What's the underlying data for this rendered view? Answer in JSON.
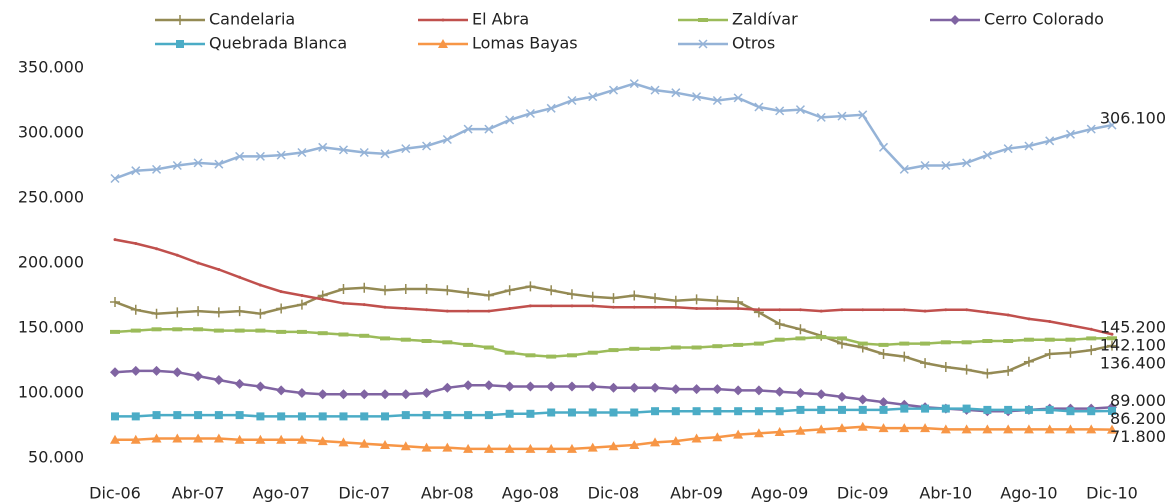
{
  "chart_data": {
    "type": "line",
    "categories": [
      "Dic-06",
      null,
      null,
      null,
      "Abr-07",
      null,
      null,
      null,
      "Ago-07",
      null,
      null,
      null,
      "Dic-07",
      null,
      null,
      null,
      "Abr-08",
      null,
      null,
      null,
      "Ago-08",
      null,
      null,
      null,
      "Dic-08",
      null,
      null,
      null,
      "Abr-09",
      null,
      null,
      null,
      "Ago-09",
      null,
      null,
      null,
      "Dic-09",
      null,
      null,
      null,
      "Abr-10",
      null,
      null,
      null,
      "Ago-10",
      null,
      null,
      null,
      "Dic-10"
    ],
    "ylim": [
      50000,
      350000
    ],
    "yticks": [
      {
        "value": 50000,
        "label": "50.000"
      },
      {
        "value": 100000,
        "label": "100.000"
      },
      {
        "value": 150000,
        "label": "150.000"
      },
      {
        "value": 200000,
        "label": "200.000"
      },
      {
        "value": 250000,
        "label": "250.000"
      },
      {
        "value": 300000,
        "label": "300.000"
      },
      {
        "value": 350000,
        "label": "350.000"
      }
    ],
    "grid": false,
    "legend": "top",
    "series": [
      {
        "name": "Candelaria",
        "color": "#948a54",
        "marker": "plus",
        "values": [
          170000,
          164000,
          161000,
          162000,
          163000,
          162000,
          163000,
          161000,
          165000,
          168000,
          175000,
          180000,
          181000,
          179000,
          180000,
          180000,
          179000,
          177000,
          175000,
          179000,
          182000,
          179000,
          176000,
          174000,
          173000,
          175000,
          173000,
          171000,
          172000,
          171000,
          170000,
          162000,
          153000,
          149000,
          144000,
          138000,
          135000,
          130000,
          128000,
          123000,
          120000,
          118000,
          115000,
          117000,
          124000,
          130000,
          131000,
          133000,
          136400
        ],
        "value_labels": [
          null,
          null,
          null,
          null,
          null,
          null,
          null,
          null,
          null,
          null,
          null,
          null,
          null,
          null,
          null,
          null,
          null,
          null,
          null,
          null,
          null,
          null,
          null,
          null,
          null,
          null,
          null,
          null,
          null,
          null,
          null,
          null,
          null,
          null,
          null,
          null,
          null,
          null,
          null,
          null,
          null,
          null,
          null,
          null,
          null,
          null,
          null,
          null,
          "136.400"
        ]
      },
      {
        "name": "El Abra",
        "color": "#c0504d",
        "marker": "dot",
        "values": [
          218000,
          215000,
          211000,
          206000,
          200000,
          195000,
          189000,
          183000,
          178000,
          175000,
          172000,
          169000,
          168000,
          166000,
          165000,
          164000,
          163000,
          163000,
          163000,
          165000,
          167000,
          167000,
          167000,
          167000,
          166000,
          166000,
          166000,
          166000,
          165000,
          165000,
          165000,
          164000,
          164000,
          164000,
          163000,
          164000,
          164000,
          164000,
          164000,
          163000,
          164000,
          164000,
          162000,
          160000,
          157000,
          155000,
          152000,
          149000,
          145200
        ],
        "value_labels": [
          null,
          null,
          null,
          null,
          null,
          null,
          null,
          null,
          null,
          null,
          null,
          null,
          null,
          null,
          null,
          null,
          null,
          null,
          null,
          null,
          null,
          null,
          null,
          null,
          null,
          null,
          null,
          null,
          null,
          null,
          null,
          null,
          null,
          null,
          null,
          null,
          null,
          null,
          null,
          null,
          null,
          null,
          null,
          null,
          null,
          null,
          null,
          null,
          "145.200"
        ]
      },
      {
        "name": "Zaldívar",
        "color": "#9bbb59",
        "marker": "dash",
        "values": [
          147000,
          148000,
          149000,
          149000,
          149000,
          148000,
          148000,
          148000,
          147000,
          147000,
          146000,
          145000,
          144000,
          142000,
          141000,
          140000,
          139000,
          137000,
          135000,
          131000,
          129000,
          128000,
          129000,
          131000,
          133000,
          134000,
          134000,
          135000,
          135000,
          136000,
          137000,
          138000,
          141000,
          142000,
          143000,
          142000,
          138000,
          137000,
          138000,
          138000,
          139000,
          139000,
          140000,
          140000,
          141000,
          141000,
          141000,
          142000,
          142100
        ],
        "value_labels": [
          null,
          null,
          null,
          null,
          null,
          null,
          null,
          null,
          null,
          null,
          null,
          null,
          null,
          null,
          null,
          null,
          null,
          null,
          null,
          null,
          null,
          null,
          null,
          null,
          null,
          null,
          null,
          null,
          null,
          null,
          null,
          null,
          null,
          null,
          null,
          null,
          null,
          null,
          null,
          null,
          null,
          null,
          null,
          null,
          null,
          null,
          null,
          null,
          "142.100"
        ]
      },
      {
        "name": "Cerro Colorado",
        "color": "#8064a2",
        "marker": "diamond",
        "values": [
          116000,
          117000,
          117000,
          116000,
          113000,
          110000,
          107000,
          105000,
          102000,
          100000,
          99000,
          99000,
          99000,
          99000,
          99000,
          100000,
          104000,
          106000,
          106000,
          105000,
          105000,
          105000,
          105000,
          105000,
          104000,
          104000,
          104000,
          103000,
          103000,
          103000,
          102000,
          102000,
          101000,
          100000,
          99000,
          97000,
          95000,
          93000,
          91000,
          89000,
          88000,
          87000,
          86000,
          86000,
          87000,
          88000,
          88000,
          88000,
          89000
        ],
        "value_labels": [
          null,
          null,
          null,
          null,
          null,
          null,
          null,
          null,
          null,
          null,
          null,
          null,
          null,
          null,
          null,
          null,
          null,
          null,
          null,
          null,
          null,
          null,
          null,
          null,
          null,
          null,
          null,
          null,
          null,
          null,
          null,
          null,
          null,
          null,
          null,
          null,
          null,
          null,
          null,
          null,
          null,
          null,
          null,
          null,
          null,
          null,
          null,
          null,
          "89.000"
        ]
      },
      {
        "name": "Quebrada Blanca",
        "color": "#4bacc6",
        "marker": "square",
        "values": [
          82000,
          82000,
          83000,
          83000,
          83000,
          83000,
          83000,
          82000,
          82000,
          82000,
          82000,
          82000,
          82000,
          82000,
          83000,
          83000,
          83000,
          83000,
          83000,
          84000,
          84000,
          85000,
          85000,
          85000,
          85000,
          85000,
          86000,
          86000,
          86000,
          86000,
          86000,
          86000,
          86000,
          87000,
          87000,
          87000,
          87000,
          87000,
          88000,
          88000,
          88000,
          88000,
          87000,
          87000,
          87000,
          87000,
          86000,
          86000,
          86200
        ],
        "value_labels": [
          null,
          null,
          null,
          null,
          null,
          null,
          null,
          null,
          null,
          null,
          null,
          null,
          null,
          null,
          null,
          null,
          null,
          null,
          null,
          null,
          null,
          null,
          null,
          null,
          null,
          null,
          null,
          null,
          null,
          null,
          null,
          null,
          null,
          null,
          null,
          null,
          null,
          null,
          null,
          null,
          null,
          null,
          null,
          null,
          null,
          null,
          null,
          null,
          "86.200"
        ]
      },
      {
        "name": "Lomas Bayas",
        "color": "#f79646",
        "marker": "triangle",
        "values": [
          64000,
          64000,
          65000,
          65000,
          65000,
          65000,
          64000,
          64000,
          64000,
          64000,
          63000,
          62000,
          61000,
          60000,
          59000,
          58000,
          58000,
          57000,
          57000,
          57000,
          57000,
          57000,
          57000,
          58000,
          59000,
          60000,
          62000,
          63000,
          65000,
          66000,
          68000,
          69000,
          70000,
          71000,
          72000,
          73000,
          74000,
          73000,
          73000,
          73000,
          72000,
          72000,
          72000,
          72000,
          72000,
          72000,
          72000,
          72000,
          71800
        ],
        "value_labels": [
          null,
          null,
          null,
          null,
          null,
          null,
          null,
          null,
          null,
          null,
          null,
          null,
          null,
          null,
          null,
          null,
          null,
          null,
          null,
          null,
          null,
          null,
          null,
          null,
          null,
          null,
          null,
          null,
          null,
          null,
          null,
          null,
          null,
          null,
          null,
          null,
          null,
          null,
          null,
          null,
          null,
          null,
          null,
          null,
          null,
          null,
          null,
          null,
          "71.800"
        ]
      },
      {
        "name": "Otros",
        "color": "#95b3d7",
        "marker": "x",
        "values": [
          265000,
          271000,
          272000,
          275000,
          277000,
          276000,
          282000,
          282000,
          283000,
          285000,
          289000,
          287000,
          285000,
          284000,
          288000,
          290000,
          295000,
          303000,
          303000,
          310000,
          315000,
          319000,
          325000,
          328000,
          333000,
          338000,
          333000,
          331000,
          328000,
          325000,
          327000,
          320000,
          317000,
          318000,
          312000,
          313000,
          314000,
          289000,
          272000,
          275000,
          275000,
          277000,
          283000,
          288000,
          290000,
          294000,
          299000,
          303000,
          306100
        ],
        "value_labels": [
          null,
          null,
          null,
          null,
          null,
          null,
          null,
          null,
          null,
          null,
          null,
          null,
          null,
          null,
          null,
          null,
          null,
          null,
          null,
          null,
          null,
          null,
          null,
          null,
          null,
          null,
          null,
          null,
          null,
          null,
          null,
          null,
          null,
          null,
          null,
          null,
          null,
          null,
          null,
          null,
          null,
          null,
          null,
          null,
          null,
          null,
          null,
          null,
          "306.100"
        ]
      }
    ]
  }
}
